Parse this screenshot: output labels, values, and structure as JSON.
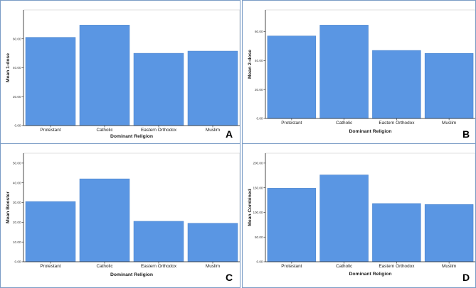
{
  "chart_data": [
    {
      "type": "bar",
      "panel_label": "A",
      "categories": [
        "Protestant",
        "Catholic",
        "Eastern Orthodox",
        "Muslim"
      ],
      "values": [
        61.0,
        69.5,
        50.0,
        51.5
      ],
      "title": "",
      "xlabel": "Dominant Religion",
      "ylabel": "Mean 1-dose",
      "ylim": [
        0,
        80
      ],
      "yticks": [
        "0.00",
        "20.00",
        "40.00",
        "60.00"
      ]
    },
    {
      "type": "bar",
      "panel_label": "B",
      "categories": [
        "Protestant",
        "Catholic",
        "Eastern Orthodox",
        "Muslim"
      ],
      "values": [
        57.0,
        64.5,
        47.0,
        45.0
      ],
      "title": "",
      "xlabel": "Dominant Religion",
      "ylabel": "Mean 2-dose",
      "ylim": [
        0,
        75
      ],
      "yticks": [
        "0.00",
        "20.00",
        "40.00",
        "60.00"
      ]
    },
    {
      "type": "bar",
      "panel_label": "C",
      "categories": [
        "Protestant",
        "Catholic",
        "Eastern Orthodox",
        "Muslim"
      ],
      "values": [
        30.5,
        42.0,
        20.5,
        19.5
      ],
      "title": "",
      "xlabel": "Dominant Religion",
      "ylabel": "Mean Booster",
      "ylim": [
        0,
        55
      ],
      "yticks": [
        "0.00",
        "10.00",
        "20.00",
        "30.00",
        "40.00",
        "50.00"
      ]
    },
    {
      "type": "bar",
      "panel_label": "D",
      "categories": [
        "Protestant",
        "Catholic",
        "Eastern Orthodox",
        "Muslim"
      ],
      "values": [
        149.0,
        176.0,
        118.0,
        116.0
      ],
      "title": "",
      "xlabel": "Dominant Religion",
      "ylabel": "Mean Combined",
      "ylim": [
        0,
        220
      ],
      "yticks": [
        "0.00",
        "50.00",
        "100.00",
        "150.00",
        "200.00"
      ]
    }
  ]
}
